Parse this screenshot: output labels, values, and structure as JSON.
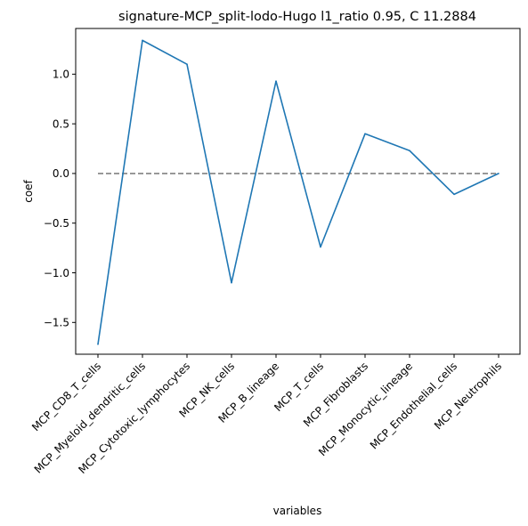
{
  "chart_data": {
    "type": "line",
    "title": "signature-MCP_split-lodo-Hugo l1_ratio 0.95, C 11.2884",
    "xlabel": "variables",
    "ylabel": "coef",
    "categories": [
      "MCP_CD8_T_cells",
      "MCP_Myeloid_dendritic_cells",
      "MCP_Cytotoxic_lymphocytes",
      "MCP_NK_cells",
      "MCP_B_lineage",
      "MCP_T_cells",
      "MCP_Fibroblasts",
      "MCP_Monocytic_lineage",
      "MCP_Endothelial_cells",
      "MCP_Neutrophils"
    ],
    "series": [
      {
        "values": [
          -1.72,
          1.34,
          1.1,
          -1.1,
          0.93,
          -0.74,
          0.4,
          0.23,
          -0.21,
          0.0
        ],
        "color": "#1f77b4"
      }
    ],
    "reference_line": {
      "y": 0,
      "style": "dashed",
      "color": "#808080"
    },
    "ylim": [
      -1.82,
      1.46
    ],
    "yticks": [
      -1.5,
      -1.0,
      -0.5,
      0.0,
      0.5,
      1.0
    ],
    "ytick_labels": [
      "−1.5",
      "−1.0",
      "−0.5",
      "0.0",
      "0.5",
      "1.0"
    ],
    "grid": false,
    "legend": "none"
  }
}
